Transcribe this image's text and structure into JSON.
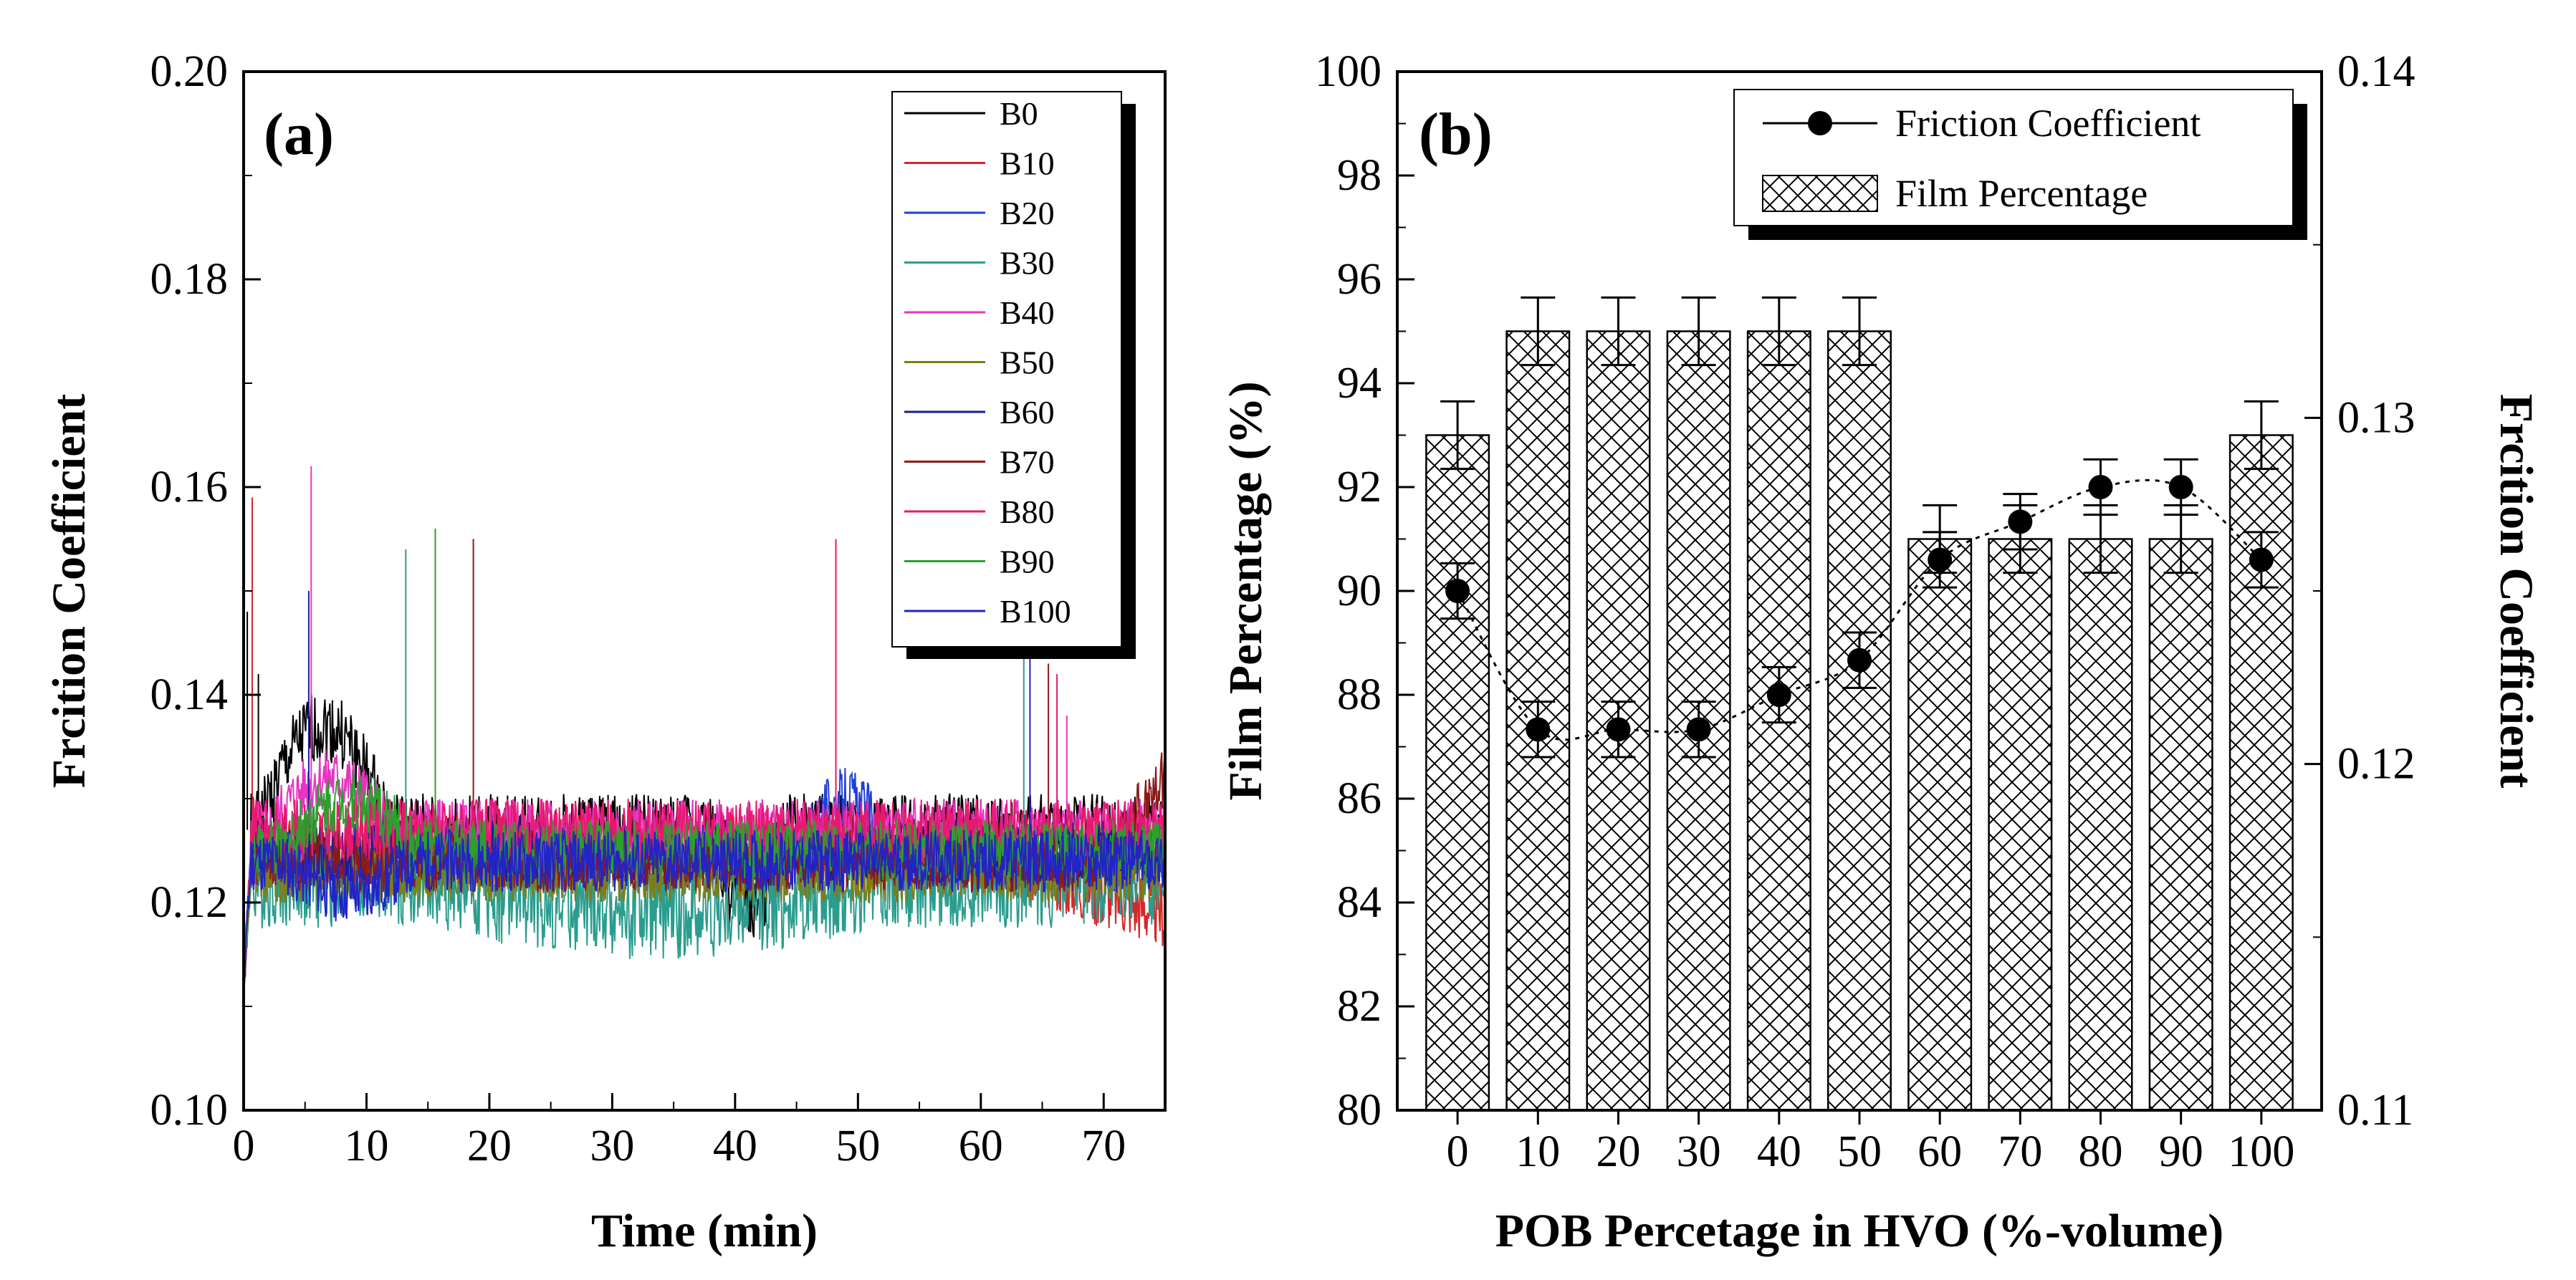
{
  "chart_data": [
    {
      "panel": "(a)",
      "type": "line",
      "title": "",
      "xlabel": "Time (min)",
      "ylabel": "Frcition Coefficient",
      "xlim": [
        0,
        75
      ],
      "ylim": [
        0.1,
        0.2
      ],
      "xticks": [
        "0",
        "10",
        "20",
        "30",
        "40",
        "50",
        "60",
        "70"
      ],
      "yticks": [
        "0.10",
        "0.12",
        "0.14",
        "0.16",
        "0.18",
        "0.20"
      ],
      "legend_position": "top-right",
      "series": [
        {
          "name": "B0",
          "color": "#000000",
          "base": 0.127,
          "noise": 0.0035,
          "seed": 1,
          "bump": {
            "x0": 1,
            "x1": 12,
            "dy": 0.01
          },
          "dip": {
            "x0": 38,
            "x1": 44,
            "dy": -0.008
          },
          "spikes": [
            [
              0.3,
              0.148
            ],
            [
              1.2,
              0.142
            ]
          ]
        },
        {
          "name": "B10",
          "color": "#d62728",
          "base": 0.125,
          "noise": 0.0035,
          "seed": 2,
          "trend": {
            "x0": 60,
            "x1": 75,
            "dy": -0.006
          },
          "spikes": [
            [
              0.7,
              0.159
            ]
          ]
        },
        {
          "name": "B20",
          "color": "#1f3fd6",
          "base": 0.124,
          "noise": 0.003,
          "seed": 3,
          "bump": {
            "x0": 45,
            "x1": 53,
            "dy": 0.006
          },
          "spikes": []
        },
        {
          "name": "B30",
          "color": "#2a9d8f",
          "base": 0.122,
          "noise": 0.0045,
          "seed": 4,
          "dip": {
            "x0": 15,
            "x1": 52,
            "dy": -0.003
          },
          "spikes": [
            [
              13.2,
              0.154
            ],
            [
              63.5,
              0.144
            ]
          ]
        },
        {
          "name": "B40",
          "color": "#e834c0",
          "base": 0.127,
          "noise": 0.003,
          "seed": 5,
          "bump": {
            "x0": 2,
            "x1": 12,
            "dy": 0.005
          },
          "spikes": [
            [
              5.5,
              0.162
            ],
            [
              67,
              0.138
            ]
          ]
        },
        {
          "name": "B50",
          "color": "#7d7d16",
          "base": 0.123,
          "noise": 0.003,
          "seed": 6,
          "spikes": []
        },
        {
          "name": "B60",
          "color": "#1a1a9c",
          "base": 0.125,
          "noise": 0.003,
          "seed": 7,
          "spikes": [
            [
              5.3,
              0.15
            ]
          ]
        },
        {
          "name": "B70",
          "color": "#8b1a1a",
          "base": 0.124,
          "noise": 0.003,
          "seed": 8,
          "trend": {
            "x0": 70,
            "x1": 75,
            "dy": 0.008
          },
          "spikes": [
            [
              18.7,
              0.155
            ],
            [
              65.5,
              0.143
            ]
          ]
        },
        {
          "name": "B80",
          "color": "#e6196e",
          "base": 0.127,
          "noise": 0.003,
          "seed": 9,
          "spikes": [
            [
              48.2,
              0.155
            ],
            [
              66.2,
              0.142
            ]
          ]
        },
        {
          "name": "B90",
          "color": "#2ca02c",
          "base": 0.125,
          "noise": 0.003,
          "seed": 10,
          "bump": {
            "x0": 3,
            "x1": 14,
            "dy": 0.005
          },
          "spikes": [
            [
              15.6,
              0.156
            ]
          ]
        },
        {
          "name": "B100",
          "color": "#2323c8",
          "base": 0.124,
          "noise": 0.003,
          "seed": 11,
          "dip": {
            "x0": 3,
            "x1": 14,
            "dy": -0.003
          },
          "spikes": [
            [
              64,
              0.145
            ]
          ]
        }
      ]
    },
    {
      "panel": "(b)",
      "type": "bar",
      "title": "",
      "xlabel": "POB Percetage in HVO (%-volume)",
      "ylabel": "Film Percentage (%)",
      "y2label": "Frcition Coefficient",
      "categories": [
        "0",
        "10",
        "20",
        "30",
        "40",
        "50",
        "60",
        "70",
        "80",
        "90",
        "100"
      ],
      "ylim": [
        80,
        100
      ],
      "yticks": [
        "80",
        "82",
        "84",
        "86",
        "88",
        "90",
        "92",
        "94",
        "96",
        "98",
        "100"
      ],
      "y2lim": [
        0.11,
        0.14
      ],
      "y2ticks": [
        "0.11",
        "0.12",
        "0.13",
        "0.14"
      ],
      "legend_position": "top-right",
      "series": [
        {
          "name": "Film Percentage",
          "axis": "left",
          "values": [
            93,
            95,
            95,
            95,
            95,
            95,
            91,
            91,
            91,
            91,
            93
          ],
          "error": [
            0.65,
            0.65,
            0.65,
            0.65,
            0.65,
            0.65,
            0.65,
            0.65,
            0.65,
            0.65,
            0.65
          ]
        },
        {
          "name": "Friction Coefficient",
          "axis": "right",
          "values": [
            0.125,
            0.121,
            0.121,
            0.121,
            0.122,
            0.123,
            0.1259,
            0.127,
            0.128,
            0.128,
            0.1259
          ],
          "error": [
            0.0008,
            0.0008,
            0.0008,
            0.0008,
            0.0008,
            0.0008,
            0.0008,
            0.0008,
            0.0008,
            0.0008,
            0.0008
          ]
        }
      ]
    }
  ]
}
